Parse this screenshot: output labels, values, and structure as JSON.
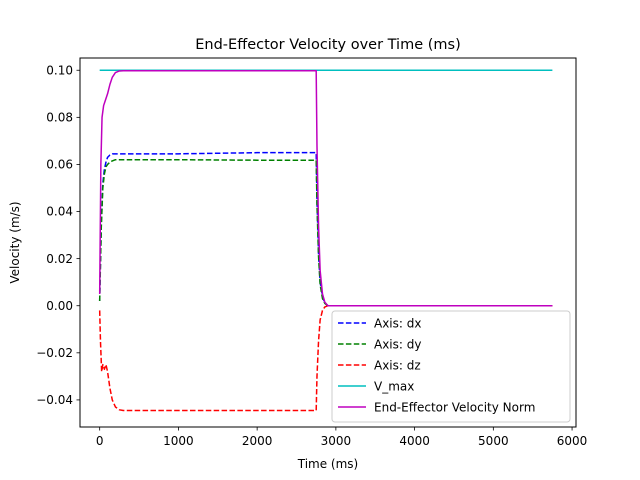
{
  "chart_data": {
    "type": "line",
    "title": "End-Effector Velocity over Time (ms)",
    "xlabel": "Time (ms)",
    "ylabel": "Velocity (m/s)",
    "xlim": [
      -250,
      6050
    ],
    "ylim": [
      -0.0515,
      0.1052
    ],
    "xticks": [
      0,
      1000,
      2000,
      3000,
      4000,
      5000,
      6000
    ],
    "xtick_labels": [
      "0",
      "1000",
      "2000",
      "3000",
      "4000",
      "5000",
      "6000"
    ],
    "yticks": [
      -0.04,
      -0.02,
      0.0,
      0.02,
      0.04,
      0.06,
      0.08,
      0.1
    ],
    "ytick_labels": [
      "−0.04",
      "−0.02",
      "0.00",
      "0.02",
      "0.04",
      "0.06",
      "0.08",
      "0.10"
    ],
    "grid": false,
    "legend_position": "lower-right",
    "series": [
      {
        "name": "Axis: dx",
        "color": "#0000ff",
        "style": "dashed",
        "x": [
          0,
          20,
          40,
          60,
          80,
          100,
          130,
          160,
          200,
          300,
          500,
          1000,
          2000,
          2750,
          2760,
          2780,
          2800,
          2830,
          2860,
          2900,
          3000,
          4000,
          5000,
          5750
        ],
        "y": [
          0.002,
          0.035,
          0.052,
          0.058,
          0.061,
          0.063,
          0.064,
          0.0645,
          0.0645,
          0.0645,
          0.0645,
          0.0645,
          0.065,
          0.065,
          0.045,
          0.022,
          0.01,
          0.004,
          0.001,
          0.0,
          0.0,
          0.0,
          0.0,
          0.0
        ]
      },
      {
        "name": "Axis: dy",
        "color": "#008000",
        "style": "dashed",
        "x": [
          0,
          20,
          40,
          60,
          80,
          100,
          130,
          160,
          200,
          300,
          500,
          1000,
          2000,
          2750,
          2760,
          2780,
          2800,
          2830,
          2860,
          2900,
          3000,
          4000,
          5000,
          5750
        ],
        "y": [
          0.002,
          0.033,
          0.05,
          0.056,
          0.059,
          0.06,
          0.061,
          0.0615,
          0.062,
          0.062,
          0.062,
          0.062,
          0.0618,
          0.0618,
          0.043,
          0.021,
          0.009,
          0.003,
          0.001,
          0.0,
          0.0,
          0.0,
          0.0,
          0.0
        ]
      },
      {
        "name": "Axis: dz",
        "color": "#ff0000",
        "style": "dashed",
        "x": [
          0,
          10,
          25,
          40,
          60,
          80,
          100,
          130,
          160,
          200,
          250,
          300,
          500,
          1000,
          2000,
          2750,
          2760,
          2780,
          2800,
          2830,
          2860,
          2900,
          3000,
          4000,
          5000,
          5750
        ],
        "y": [
          -0.002,
          -0.015,
          -0.028,
          -0.025,
          -0.027,
          -0.025,
          -0.028,
          -0.035,
          -0.04,
          -0.043,
          -0.0442,
          -0.0445,
          -0.0445,
          -0.0445,
          -0.0445,
          -0.0445,
          -0.03,
          -0.015,
          -0.006,
          -0.002,
          -0.0005,
          0.0,
          0.0,
          0.0,
          0.0,
          0.0
        ]
      },
      {
        "name": "V_max",
        "color": "#00bfbf",
        "style": "solid",
        "x": [
          0,
          5750
        ],
        "y": [
          0.1,
          0.1
        ]
      },
      {
        "name": "End-Effector Velocity Norm",
        "color": "#bf00bf",
        "style": "solid",
        "x": [
          0,
          15,
          30,
          50,
          70,
          100,
          130,
          160,
          200,
          250,
          300,
          500,
          1000,
          2000,
          2750,
          2760,
          2780,
          2800,
          2830,
          2860,
          2900,
          3000,
          4000,
          5000,
          5750
        ],
        "y": [
          0.005,
          0.06,
          0.08,
          0.085,
          0.087,
          0.09,
          0.094,
          0.097,
          0.099,
          0.0997,
          0.0998,
          0.0998,
          0.0998,
          0.0998,
          0.0998,
          0.068,
          0.034,
          0.015,
          0.005,
          0.0015,
          0.0,
          0.0,
          0.0,
          0.0,
          0.0
        ]
      }
    ]
  }
}
